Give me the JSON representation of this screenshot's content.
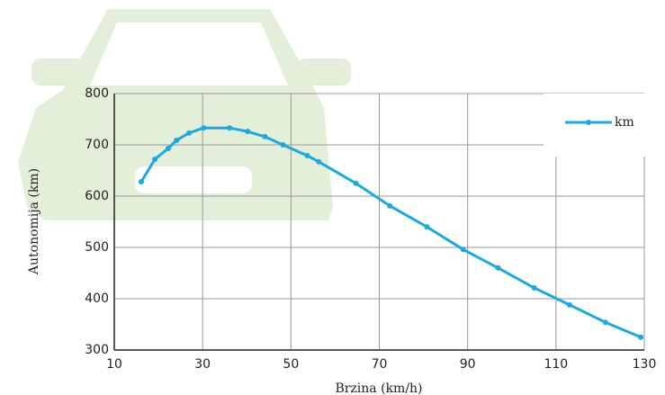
{
  "chart_data": {
    "type": "line",
    "xlabel": "Brzina (km/h)",
    "ylabel": "Autonomija (km)",
    "xlim": [
      10,
      130
    ],
    "xticks": [
      10,
      30,
      50,
      70,
      90,
      110,
      130
    ],
    "ylim": [
      300,
      800
    ],
    "yticks": [
      300,
      400,
      500,
      600,
      700,
      800
    ],
    "grid": true,
    "legend": "upper right",
    "series": [
      {
        "name": "km",
        "color": "#1ca8e0",
        "x": [
          16.1,
          19.2,
          22.2,
          24.1,
          26.9,
          30.2,
          36.1,
          40.2,
          44.1,
          48.2,
          53.7,
          56.3,
          64.7,
          72.4,
          80.8,
          89,
          96.9,
          105.1,
          113.1,
          121.2,
          129.2
        ],
        "values": [
          628,
          672,
          693,
          709,
          723,
          733,
          733,
          726,
          716,
          700,
          679,
          667,
          625,
          581,
          540,
          496,
          460,
          421,
          388,
          354,
          325
        ]
      }
    ]
  }
}
